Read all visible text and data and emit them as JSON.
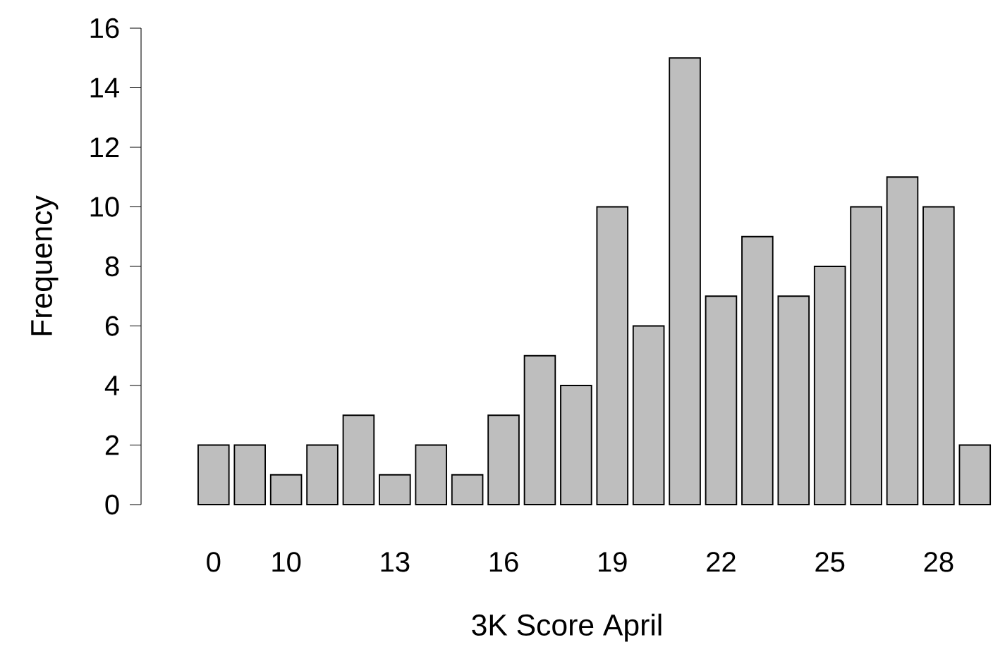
{
  "chart_data": {
    "type": "bar",
    "xlabel": "3K Score April",
    "ylabel": "Frequency",
    "categories": [
      "0",
      null,
      "10",
      null,
      null,
      "13",
      null,
      null,
      "16",
      null,
      null,
      "19",
      null,
      null,
      "22",
      null,
      null,
      "25",
      null,
      null,
      "28",
      null
    ],
    "values": [
      2,
      2,
      1,
      2,
      3,
      1,
      2,
      1,
      3,
      5,
      4,
      10,
      6,
      15,
      7,
      9,
      7,
      8,
      10,
      11,
      10,
      2
    ],
    "color": "#bebebe",
    "ylim": [
      0,
      16
    ],
    "yticks": [
      0,
      2,
      4,
      6,
      8,
      10,
      12,
      14,
      16
    ],
    "grid": false
  }
}
